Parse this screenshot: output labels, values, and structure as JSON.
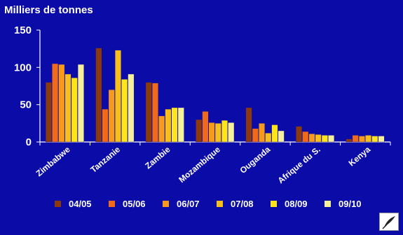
{
  "chart_data": {
    "type": "bar",
    "title": "",
    "ylabel": "Milliers de tonnes",
    "xlabel": "",
    "ylim": [
      0,
      150
    ],
    "yticks": [
      0,
      50,
      100,
      150
    ],
    "categories": [
      "Zimbabwe",
      "Tanzanie",
      "Zambie",
      "Mozambique",
      "Ouganda",
      "Afrique du S.",
      "Kenya"
    ],
    "series": [
      {
        "name": "04/05",
        "color": "#8b3a0e",
        "values": [
          80,
          126,
          80,
          30,
          46,
          21,
          4
        ]
      },
      {
        "name": "05/06",
        "color": "#f06a1a",
        "values": [
          105,
          44,
          79,
          41,
          18,
          14,
          9
        ]
      },
      {
        "name": "06/07",
        "color": "#f59a1c",
        "values": [
          104,
          70,
          35,
          26,
          25,
          11,
          8
        ]
      },
      {
        "name": "07/08",
        "color": "#f7bf1c",
        "values": [
          91,
          123,
          44,
          25,
          12,
          10,
          9
        ]
      },
      {
        "name": "08/09",
        "color": "#ffe519",
        "values": [
          86,
          84,
          46,
          29,
          23,
          9,
          8
        ]
      },
      {
        "name": "09/10",
        "color": "#f7f09a",
        "values": [
          104,
          91,
          46,
          26,
          15,
          9,
          8
        ]
      }
    ],
    "grid": false,
    "legend": "bottom",
    "background": "#0b0ba8",
    "text_color": "#ffffff"
  },
  "logo_icon": "leaf-stamp-icon"
}
